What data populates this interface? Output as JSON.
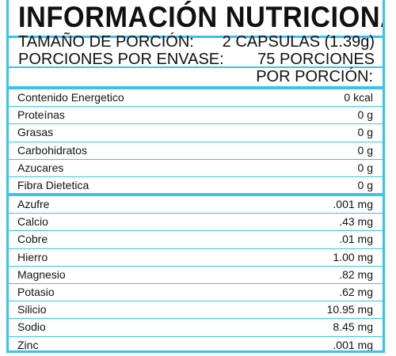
{
  "title": "INFORMACIÓN NUTRICIONAL",
  "serving": {
    "size_label": "TAMAÑO DE PORCIÓN:",
    "size_value": "2 CAPSULAS (1.39g)",
    "servings_label": "PORCIONES POR ENVASE:",
    "servings_value": "75 PORCIONES",
    "per_serving": "POR PORCIÓN:"
  },
  "macros": [
    {
      "name": "Contenido Energetico",
      "amount": "0 kcal"
    },
    {
      "name": "Proteínas",
      "amount": "0 g"
    },
    {
      "name": "Grasas",
      "amount": "0 g"
    },
    {
      "name": "Carbohidratos",
      "amount": "0 g"
    },
    {
      "name": "Azucares",
      "amount": "0 g"
    },
    {
      "name": "Fibra Dietetica",
      "amount": "0 g"
    }
  ],
  "minerals": [
    {
      "name": "Azufre",
      "amount": ".001 mg"
    },
    {
      "name": "Calcio",
      "amount": ".43 mg"
    },
    {
      "name": "Cobre",
      "amount": ".01 mg"
    },
    {
      "name": "Hierro",
      "amount": "1.00 mg"
    },
    {
      "name": "Magnesio",
      "amount": ".82 mg"
    },
    {
      "name": "Potasio",
      "amount": ".62 mg"
    },
    {
      "name": "Silicio",
      "amount": "10.95 mg"
    },
    {
      "name": "Sodio",
      "amount": "8.45 mg"
    },
    {
      "name": "Zinc",
      "amount": ".001 mg"
    }
  ],
  "colors": {
    "accent": "#39c2f0",
    "text": "#111111",
    "background": "#ffffff"
  }
}
